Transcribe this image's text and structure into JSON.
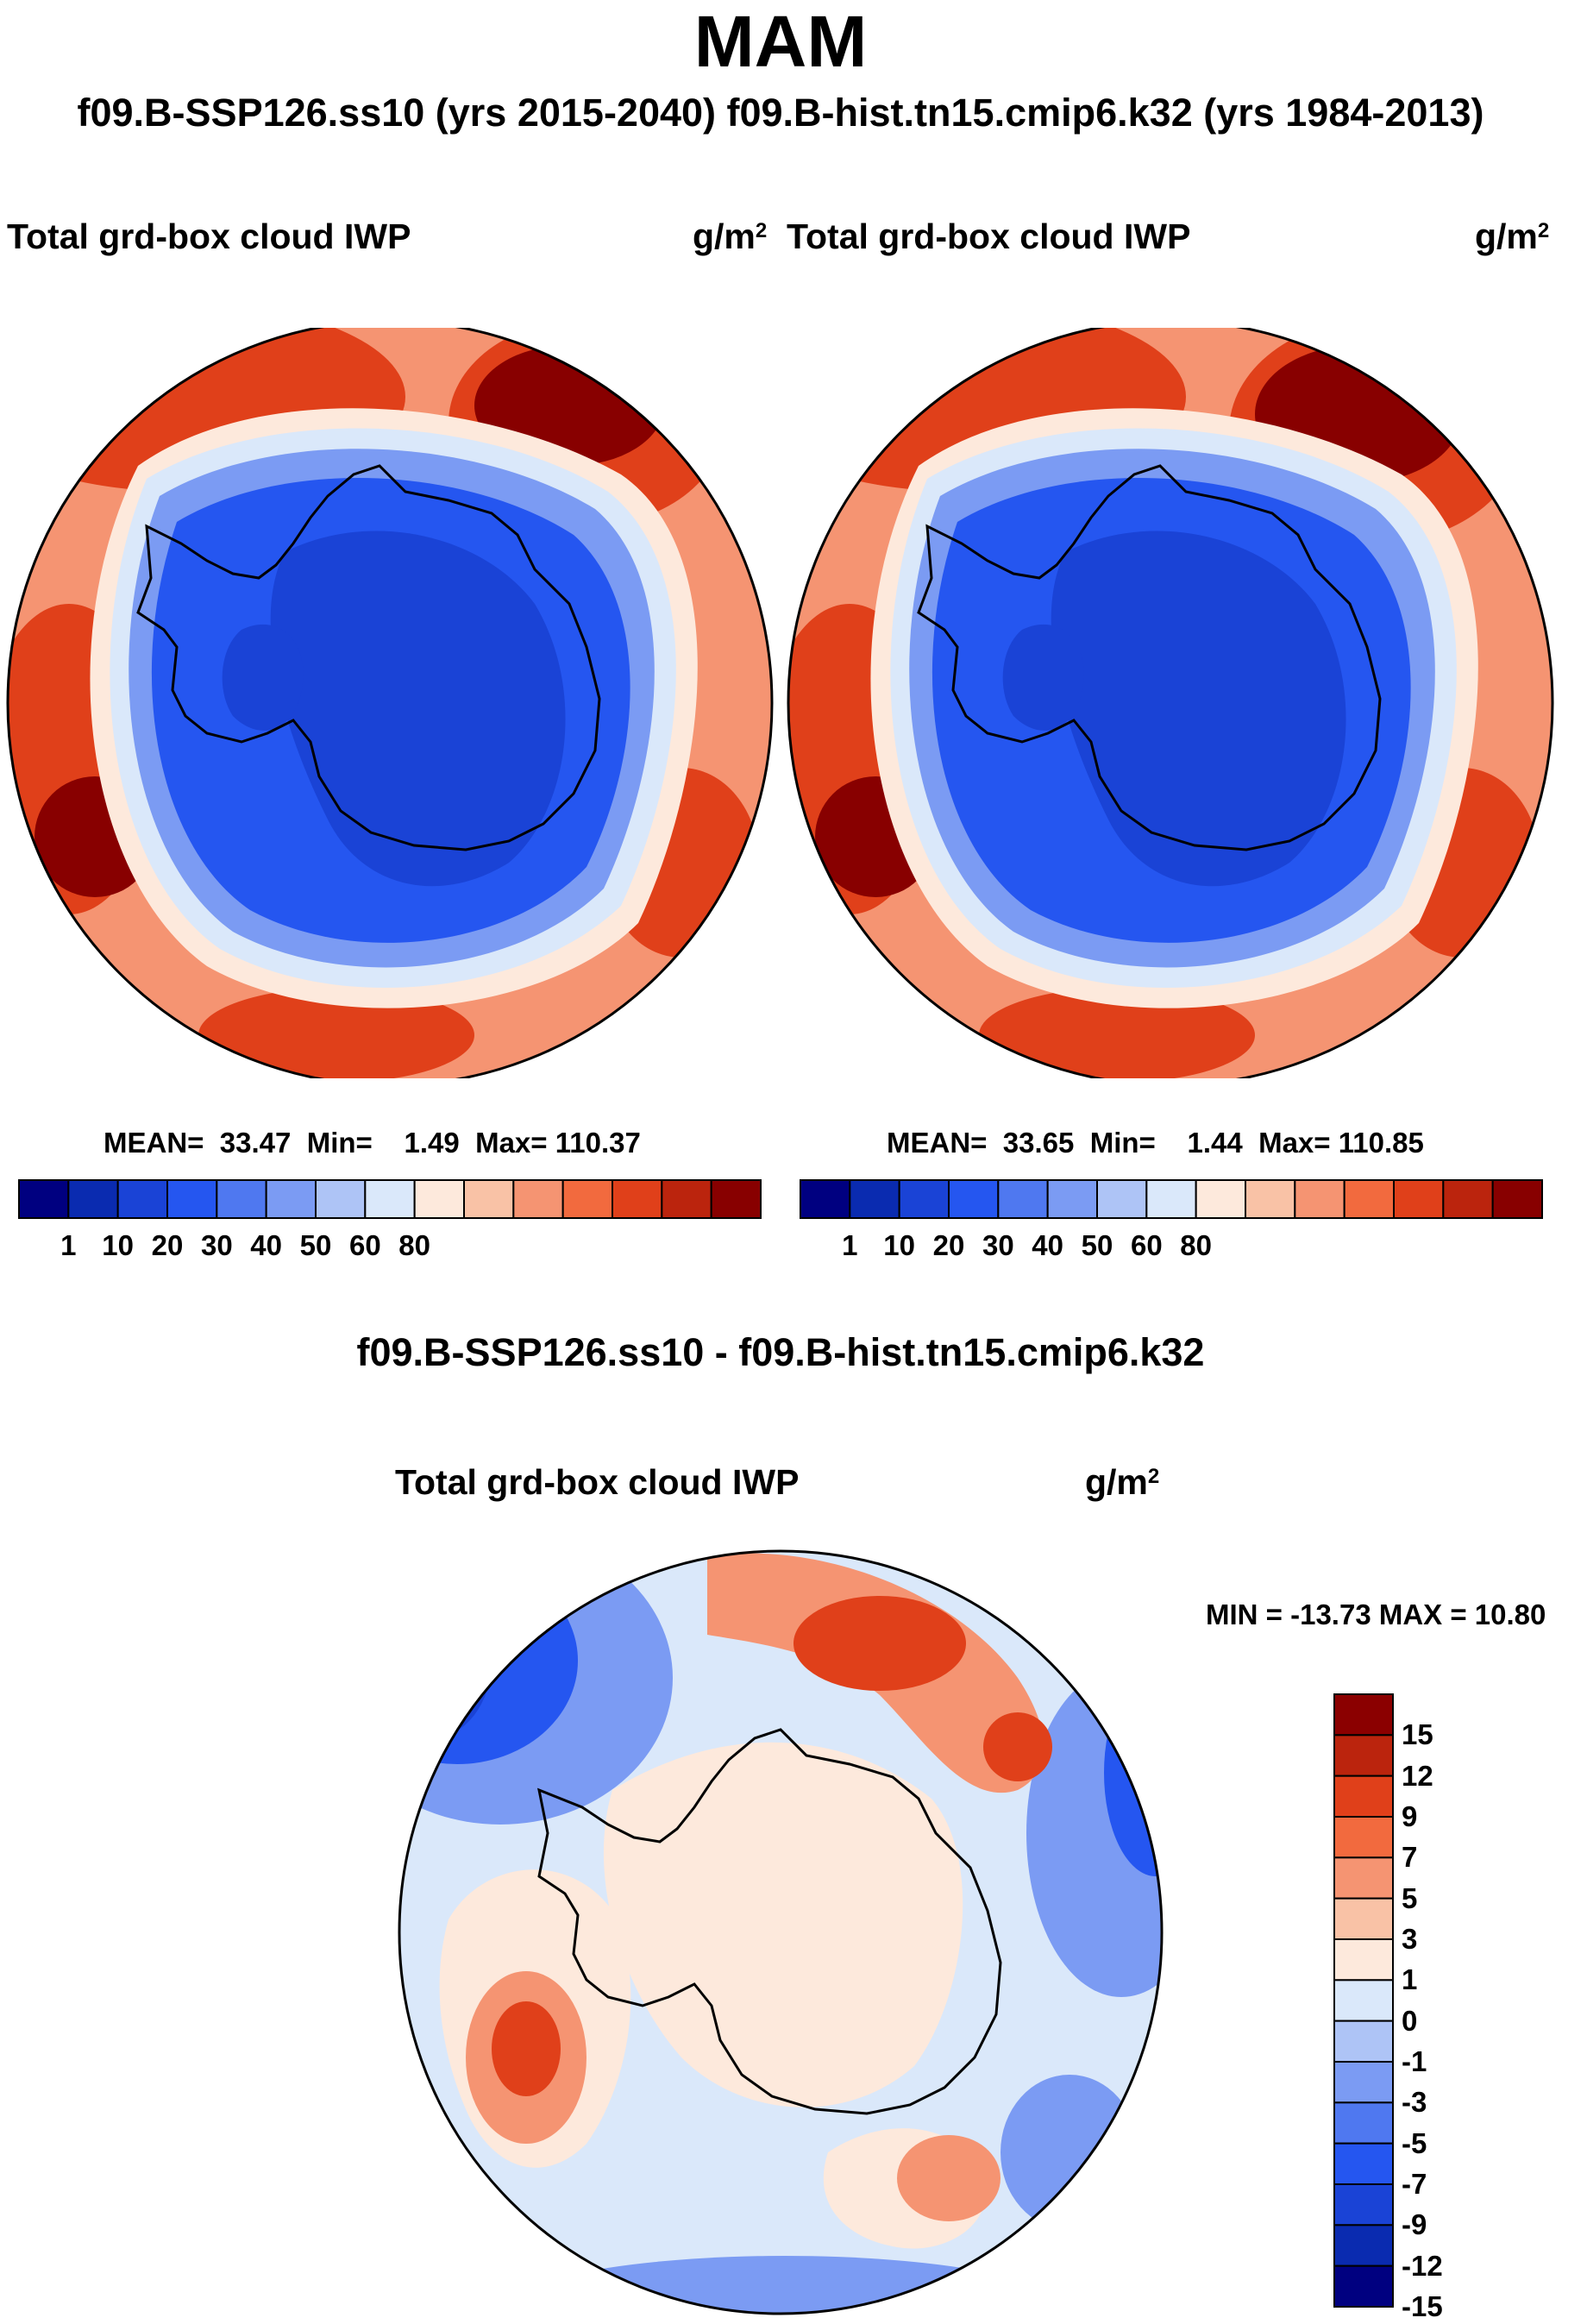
{
  "figure": {
    "title": "MAM",
    "subtitle": "f09.B-SSP126.ss10 (yrs 2015-2040)  f09.B-hist.tn15.cmip6.k32 (yrs 1984-2013)",
    "diff_title": "f09.B-SSP126.ss10 - f09.B-hist.tn15.cmip6.k32"
  },
  "panels": [
    {
      "title": "Total grd-box cloud IWP",
      "units": "g/m",
      "units_exp": "2",
      "mean_label": "MEAN=",
      "mean": "33.47",
      "min_label": "Min=",
      "min": "1.49",
      "max_label": "Max=",
      "max": "110.37"
    },
    {
      "title": "Total grd-box cloud IWP",
      "units": "g/m",
      "units_exp": "2",
      "mean_label": "MEAN=",
      "mean": "33.65",
      "min_label": "Min=",
      "min": "1.44",
      "max_label": "Max=",
      "max": "110.85"
    },
    {
      "title": "Total grd-box cloud IWP",
      "units": "g/m",
      "units_exp": "2",
      "stats_text": "MIN = -13.73 MAX =  10.80"
    }
  ],
  "colorbars": {
    "abs": {
      "colors": [
        "#000080",
        "#0a2bb0",
        "#1a43d6",
        "#2556f0",
        "#4f78f0",
        "#7b9bf3",
        "#aec4f6",
        "#dae8fa",
        "#fde9dc",
        "#f9c2a6",
        "#f59472",
        "#f26a3e",
        "#e0401a",
        "#bb240d",
        "#880000"
      ],
      "tick_labels": [
        "1",
        "10",
        "20",
        "30",
        "40",
        "50",
        "60",
        "80"
      ]
    },
    "diff": {
      "colors": [
        "#8b0000",
        "#bb240d",
        "#e0401a",
        "#f26a3e",
        "#f59472",
        "#f9c2a6",
        "#fde9dc",
        "#dae8fa",
        "#aec4f6",
        "#7b9bf3",
        "#4f78f0",
        "#2556f0",
        "#1a43d6",
        "#0a2bb0",
        "#000080"
      ],
      "tick_labels": [
        "15",
        "12",
        "9",
        "7",
        "5",
        "3",
        "1",
        "0",
        "-1",
        "-3",
        "-5",
        "-7",
        "-9",
        "-12",
        "-15"
      ]
    }
  },
  "map_colors": {
    "deep_blue": "#1a43d6",
    "mid_blue": "#2556f0",
    "light_blue": "#7b9bf3",
    "pale_blue": "#dae8fa",
    "pale_orange": "#fde9dc",
    "orange": "#f59472",
    "red": "#e0401a",
    "dark_red": "#880000",
    "coast": "#000000"
  }
}
